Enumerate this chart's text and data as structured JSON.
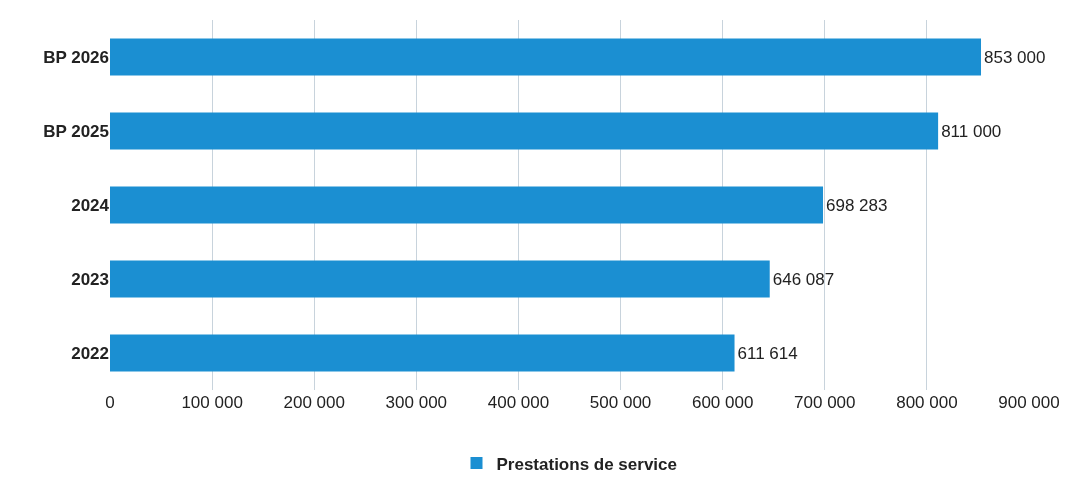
{
  "chart_data": {
    "type": "bar",
    "orientation": "horizontal",
    "categories": [
      "BP 2026",
      "BP 2025",
      "2024",
      "2023",
      "2022"
    ],
    "series": [
      {
        "name": "Prestations de service",
        "color": "#1b8fd2",
        "values": [
          853000,
          811000,
          698283,
          646087,
          611614
        ],
        "value_labels": [
          "853 000",
          "811 000",
          "698 283",
          "646 087",
          "611 614"
        ]
      }
    ],
    "xlim": [
      0,
      900000
    ],
    "xticks": [
      0,
      {
        "value": 100000,
        "label": "100 000"
      },
      {
        "value": 200000,
        "label": "200 000"
      },
      {
        "value": 300000,
        "label": "300 000"
      },
      {
        "value": 400000,
        "label": "400 000"
      },
      {
        "value": 500000,
        "label": "500 000"
      },
      {
        "value": 600000,
        "label": "600 000"
      },
      {
        "value": 700000,
        "label": "700 000"
      },
      {
        "value": 800000,
        "label": "800 000"
      },
      {
        "value": 900000,
        "label": "900 000"
      }
    ],
    "grid": "x",
    "legend": "bottom"
  }
}
